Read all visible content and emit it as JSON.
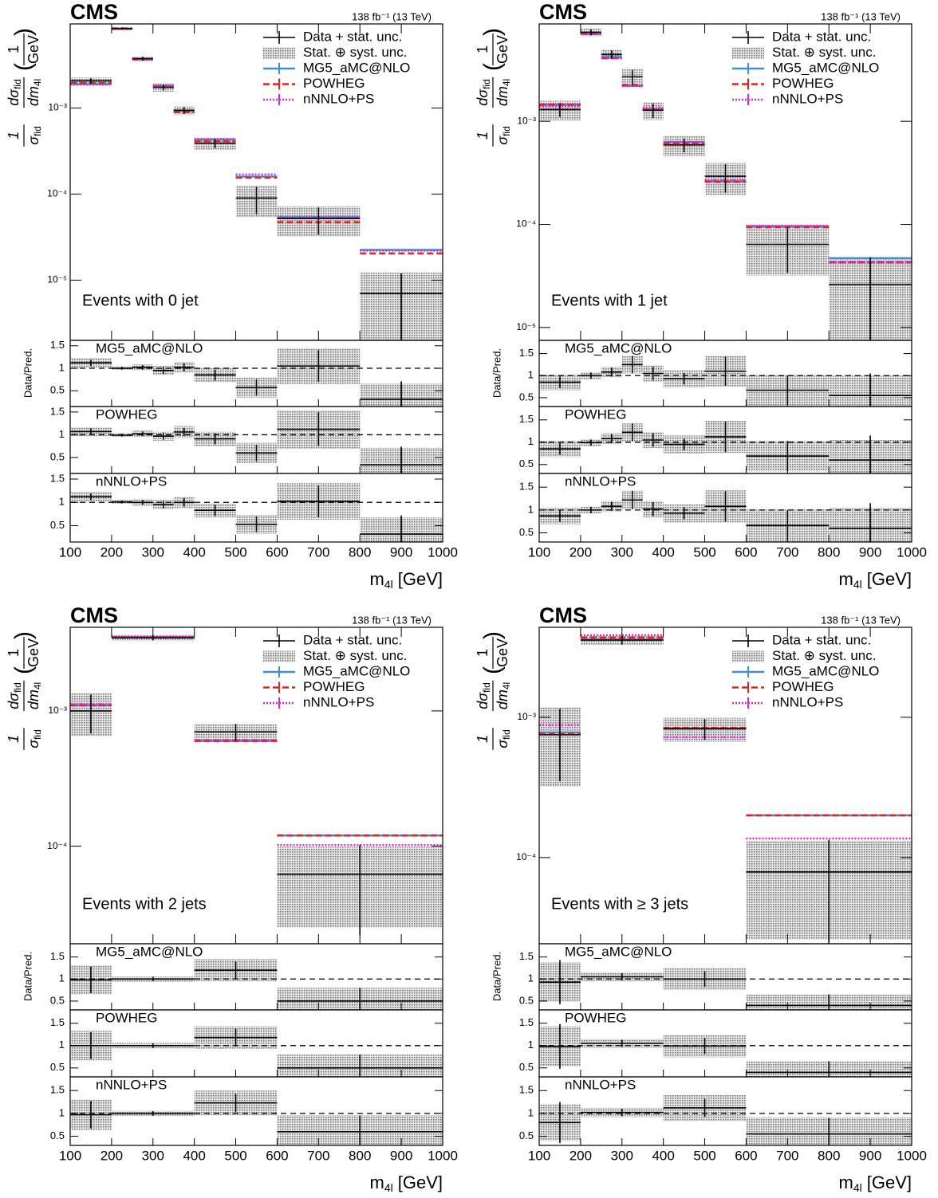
{
  "chart_data": [
    {
      "type": "histogram",
      "experiment": "CMS",
      "lumi": "138 fb⁻¹ (13 TeV)",
      "annotation": "Events with 0 jet",
      "ylabel": {
        "prefix_num": "1",
        "prefix_den": "σ",
        "prefix_den_sub": "fid",
        "num": "dσ",
        "num_sub": "fid",
        "den": "dm",
        "den_sub": "4l",
        "unit_open": "(",
        "unit_num": "1",
        "unit_den": "GeV",
        "unit_close": ")"
      },
      "xlabel": {
        "text": "m",
        "sub": "4l",
        "unit": "[GeV]"
      },
      "ratio_ylabel": "Data/Pred.",
      "bins": [
        100,
        200,
        250,
        300,
        350,
        400,
        500,
        600,
        800,
        1000
      ],
      "xlim": [
        100,
        1000
      ],
      "xticks": [
        100,
        200,
        300,
        400,
        500,
        600,
        700,
        800,
        900,
        1000
      ],
      "log": true,
      "ylim": [
        2e-06,
        0.0095
      ],
      "yticks": [
        {
          "value": 0.001,
          "label": "10⁻³"
        },
        {
          "value": 0.0001,
          "label": "10⁻⁴"
        },
        {
          "value": 1e-05,
          "label": "10⁻⁵"
        }
      ],
      "legend": "upper right",
      "data": {
        "name": "Data + stat. unc.",
        "color": "#000000",
        "values": [
          0.00207,
          0.0084,
          0.00375,
          0.00174,
          0.00094,
          0.00039,
          9e-05,
          5.2e-05,
          7e-06
        ],
        "stat": [
          0.00015,
          0.00025,
          0.00019,
          0.00014,
          8.5e-05,
          4.7e-05,
          3.2e-05,
          1.8e-05,
          5e-06
        ]
      },
      "band": {
        "name": "Stat. ⊕ syst. unc.",
        "color": "#6e6e6e",
        "errors": [
          0.0002,
          0.00035,
          0.00025,
          0.00019,
          0.00011,
          6e-05,
          3.6e-05,
          2e-05,
          5.2e-06
        ]
      },
      "series": [
        {
          "name": "MG5_aMC@NLO",
          "color": "#3f8fd2",
          "style": "solid",
          "values": [
            0.0019,
            0.0083,
            0.0037,
            0.0018,
            0.00093,
            0.00043,
            0.00016,
            5.4e-05,
            2.25e-05
          ]
        },
        {
          "name": "POWHEG",
          "color": "#e8211c",
          "style": "dashed",
          "values": [
            0.00195,
            0.0084,
            0.0037,
            0.00176,
            0.0009,
            0.00041,
            0.000155,
            4.7e-05,
            2.05e-05
          ]
        },
        {
          "name": "nNNLO+PS",
          "color": "#e020e0",
          "style": "dotted",
          "values": [
            0.00187,
            0.0083,
            0.00375,
            0.00182,
            0.00094,
            0.00044,
            0.00017,
            5.3e-05,
            2.2e-05
          ]
        }
      ],
      "ratio_ylim": [
        0.15,
        1.62
      ],
      "ratio_yticks": [
        0.5,
        1,
        1.5
      ],
      "ratio_ref": 1,
      "ratios": [
        {
          "label": "MG5_aMC@NLO",
          "values": [
            1.12,
            1.0,
            1.02,
            0.95,
            1.02,
            0.85,
            0.57,
            1.05,
            0.31
          ],
          "stat": [
            0.07,
            0.03,
            0.05,
            0.08,
            0.09,
            0.12,
            0.18,
            0.35,
            0.4
          ],
          "total": [
            0.11,
            0.04,
            0.07,
            0.1,
            0.12,
            0.16,
            0.22,
            0.4,
            0.35
          ]
        },
        {
          "label": "POWHEG",
          "values": [
            1.07,
            0.99,
            1.02,
            0.97,
            1.06,
            0.91,
            0.6,
            1.12,
            0.34
          ],
          "stat": [
            0.07,
            0.03,
            0.05,
            0.08,
            0.09,
            0.12,
            0.18,
            0.37,
            0.4
          ],
          "total": [
            0.1,
            0.04,
            0.07,
            0.1,
            0.13,
            0.16,
            0.22,
            0.42,
            0.37
          ]
        },
        {
          "label": "nNNLO+PS",
          "values": [
            1.12,
            1.01,
            1.0,
            0.95,
            1.0,
            0.83,
            0.53,
            1.02,
            0.32
          ],
          "stat": [
            0.07,
            0.03,
            0.05,
            0.08,
            0.09,
            0.12,
            0.17,
            0.34,
            0.4
          ],
          "total": [
            0.11,
            0.04,
            0.07,
            0.1,
            0.12,
            0.15,
            0.2,
            0.39,
            0.36
          ]
        }
      ]
    },
    {
      "type": "histogram",
      "experiment": "CMS",
      "lumi": "138 fb⁻¹ (13 TeV)",
      "annotation": "Events with 1 jet",
      "ylabel": {
        "prefix_num": "1",
        "prefix_den": "σ",
        "prefix_den_sub": "fid",
        "num": "dσ",
        "num_sub": "fid",
        "den": "dm",
        "den_sub": "4l",
        "unit_open": "(",
        "unit_num": "1",
        "unit_den": "GeV",
        "unit_close": ")"
      },
      "xlabel": {
        "text": "m",
        "sub": "4l",
        "unit": "[GeV]"
      },
      "ratio_ylabel": "Data/Pred.",
      "bins": [
        100,
        200,
        250,
        300,
        350,
        400,
        500,
        600,
        800,
        1000
      ],
      "xlim": [
        100,
        1000
      ],
      "xticks": [
        100,
        200,
        300,
        400,
        500,
        600,
        700,
        800,
        900,
        1000
      ],
      "log": true,
      "ylim": [
        7.5e-06,
        0.0088
      ],
      "yticks": [
        {
          "value": 0.001,
          "label": "10⁻³"
        },
        {
          "value": 0.0001,
          "label": "10⁻⁴"
        },
        {
          "value": 1e-05,
          "label": "10⁻⁵"
        }
      ],
      "legend": "upper right",
      "data": {
        "name": "Data + stat. unc.",
        "color": "#000000",
        "values": [
          0.0013,
          0.0073,
          0.00445,
          0.0027,
          0.00128,
          0.00059,
          0.000293,
          6.4e-05,
          2.6e-05
        ],
        "stat": [
          0.0002,
          0.0005,
          0.0004,
          0.00045,
          0.0002,
          9e-05,
          9e-05,
          3e-05,
          2.2e-05
        ]
      },
      "band": {
        "name": "Stat. ⊕ syst. unc.",
        "color": "#6e6e6e",
        "errors": [
          0.00028,
          0.0006,
          0.0005,
          0.0005,
          0.00025,
          0.00013,
          0.0001,
          3.2e-05,
          2e-05
        ]
      },
      "series": [
        {
          "name": "MG5_aMC@NLO",
          "color": "#3f8fd2",
          "style": "solid",
          "values": [
            0.00145,
            0.007,
            0.0042,
            0.0022,
            0.0013,
            0.00063,
            0.00026,
            9.6e-05,
            4.7e-05
          ]
        },
        {
          "name": "POWHEG",
          "color": "#e8211c",
          "style": "dashed",
          "values": [
            0.00145,
            0.0071,
            0.0041,
            0.00225,
            0.0013,
            0.00061,
            0.00026,
            9.4e-05,
            4.3e-05
          ]
        },
        {
          "name": "nNNLO+PS",
          "color": "#e020e0",
          "style": "dotted",
          "values": [
            0.0014,
            0.007,
            0.0041,
            0.0022,
            0.00135,
            0.00063,
            0.00027,
            9.7e-05,
            4.3e-05
          ]
        }
      ],
      "ratio_ylim": [
        0.3,
        1.8
      ],
      "ratio_yticks": [
        0.5,
        1,
        1.5
      ],
      "ratio_ref": 1,
      "ratios": [
        {
          "label": "MG5_aMC@NLO",
          "values": [
            0.85,
            1.0,
            1.08,
            1.25,
            1.05,
            0.93,
            1.1,
            0.67,
            0.55
          ],
          "stat": [
            0.13,
            0.07,
            0.1,
            0.2,
            0.15,
            0.13,
            0.33,
            0.33,
            0.5
          ],
          "total": [
            0.18,
            0.08,
            0.12,
            0.2,
            0.18,
            0.2,
            0.35,
            0.35,
            0.45
          ]
        },
        {
          "label": "POWHEG",
          "values": [
            0.85,
            0.99,
            1.08,
            1.22,
            1.05,
            0.95,
            1.12,
            0.69,
            0.6
          ],
          "stat": [
            0.13,
            0.07,
            0.1,
            0.2,
            0.15,
            0.13,
            0.34,
            0.34,
            0.55
          ],
          "total": [
            0.18,
            0.08,
            0.12,
            0.2,
            0.18,
            0.2,
            0.36,
            0.34,
            0.45
          ]
        },
        {
          "label": "nNNLO+PS",
          "values": [
            0.87,
            1.0,
            1.08,
            1.22,
            1.02,
            0.93,
            1.08,
            0.66,
            0.6
          ],
          "stat": [
            0.13,
            0.07,
            0.1,
            0.2,
            0.15,
            0.13,
            0.33,
            0.33,
            0.55
          ],
          "total": [
            0.18,
            0.08,
            0.12,
            0.2,
            0.18,
            0.2,
            0.35,
            0.35,
            0.45
          ]
        }
      ]
    },
    {
      "type": "histogram",
      "experiment": "CMS",
      "lumi": "138 fb⁻¹ (13 TeV)",
      "annotation": "Events with 2 jets",
      "ylabel": {
        "prefix_num": "1",
        "prefix_den": "σ",
        "prefix_den_sub": "fid",
        "num": "dσ",
        "num_sub": "fid",
        "den": "dm",
        "den_sub": "4l",
        "unit_open": "(",
        "unit_num": "1",
        "unit_den": "GeV",
        "unit_close": ")"
      },
      "xlabel": {
        "text": "m",
        "sub": "4l",
        "unit": "[GeV]"
      },
      "ratio_ylabel": "Data/Pred.",
      "bins": [
        100,
        200,
        400,
        600,
        1000
      ],
      "xlim": [
        100,
        1000
      ],
      "xticks": [
        100,
        200,
        300,
        400,
        500,
        600,
        700,
        800,
        900,
        1000
      ],
      "log": true,
      "ylim": [
        1.9e-05,
        0.00415
      ],
      "yticks": [
        {
          "value": 0.001,
          "label": "10⁻³"
        },
        {
          "value": 0.0001,
          "label": "10⁻⁴"
        }
      ],
      "legend": "upper right",
      "data": {
        "name": "Data + stat. unc.",
        "color": "#000000",
        "values": [
          0.001,
          0.00347,
          0.0007,
          6.2e-05
        ],
        "stat": [
          0.00032,
          0.00015,
          0.0001,
          4e-05
        ]
      },
      "band": {
        "name": "Stat. ⊕ syst. unc.",
        "color": "#6e6e6e",
        "errors": [
          0.00035,
          0.00018,
          0.0001,
          3.7e-05
        ]
      },
      "series": [
        {
          "name": "MG5_aMC@NLO",
          "color": "#3f8fd2",
          "style": "solid",
          "values": [
            0.0011,
            0.0035,
            0.0006,
            0.00012
          ]
        },
        {
          "name": "POWHEG",
          "color": "#e8211c",
          "style": "dashed",
          "values": [
            0.0011,
            0.0035,
            0.0006,
            0.00012
          ]
        },
        {
          "name": "nNNLO+PS",
          "color": "#e020e0",
          "style": "dotted",
          "values": [
            0.00112,
            0.00355,
            0.00061,
            0.000102
          ]
        }
      ],
      "ratio_ylim": [
        0.3,
        1.8
      ],
      "ratio_yticks": [
        0.5,
        1,
        1.5
      ],
      "ratio_ref": 1,
      "ratios": [
        {
          "label": "MG5_aMC@NLO",
          "values": [
            0.98,
            1.0,
            1.2,
            0.5
          ],
          "stat": [
            0.3,
            0.05,
            0.2,
            0.3
          ],
          "total": [
            0.33,
            0.06,
            0.25,
            0.3
          ]
        },
        {
          "label": "POWHEG",
          "values": [
            1.0,
            1.0,
            1.18,
            0.5
          ],
          "stat": [
            0.3,
            0.05,
            0.2,
            0.3
          ],
          "total": [
            0.33,
            0.06,
            0.25,
            0.3
          ]
        },
        {
          "label": "nNNLO+PS",
          "values": [
            0.97,
            1.0,
            1.23,
            0.6
          ],
          "stat": [
            0.3,
            0.05,
            0.2,
            0.35
          ],
          "total": [
            0.33,
            0.06,
            0.27,
            0.36
          ]
        }
      ]
    },
    {
      "type": "histogram",
      "experiment": "CMS",
      "lumi": "138 fb⁻¹ (13 TeV)",
      "annotation": "Events with ≥ 3 jets",
      "ylabel": {
        "prefix_num": "1",
        "prefix_den": "σ",
        "prefix_den_sub": "fid",
        "num": "dσ",
        "num_sub": "fid",
        "den": "dm",
        "den_sub": "4l",
        "unit_open": "(",
        "unit_num": "1",
        "unit_den": "GeV",
        "unit_close": ")"
      },
      "xlabel": {
        "text": "m",
        "sub": "4l",
        "unit": "[GeV]"
      },
      "ratio_ylabel": "Data/Pred.",
      "bins": [
        100,
        200,
        400,
        600,
        1000
      ],
      "xlim": [
        100,
        1000
      ],
      "xticks": [
        100,
        200,
        300,
        400,
        500,
        600,
        700,
        800,
        900,
        1000
      ],
      "log": true,
      "ylim": [
        2.43e-05,
        0.00438
      ],
      "yticks": [
        {
          "value": 0.001,
          "label": "10⁻³"
        },
        {
          "value": 0.0001,
          "label": "10⁻⁴"
        }
      ],
      "legend": "upper right",
      "data": {
        "name": "Data + stat. unc.",
        "color": "#000000",
        "values": [
          0.00075,
          0.00355,
          0.00083,
          7.9e-05
        ],
        "stat": [
          0.0004,
          0.00025,
          0.00014,
          5.5e-05
        ]
      },
      "band": {
        "name": "Stat. ⊕ syst. unc.",
        "color": "#6e6e6e",
        "errors": [
          0.00043,
          0.00026,
          0.00016,
          5.3e-05
        ]
      },
      "series": [
        {
          "name": "MG5_aMC@NLO",
          "color": "#3f8fd2",
          "style": "solid",
          "values": [
            0.00078,
            0.0036,
            0.00083,
            0.0002
          ]
        },
        {
          "name": "POWHEG",
          "color": "#e8211c",
          "style": "dashed",
          "values": [
            0.00076,
            0.0037,
            0.00084,
            0.0002
          ]
        },
        {
          "name": "nNNLO+PS",
          "color": "#e020e0",
          "style": "dotted",
          "values": [
            0.00088,
            0.00385,
            0.00072,
            0.000137
          ]
        }
      ],
      "ratio_ylim": [
        0.3,
        1.8
      ],
      "ratio_yticks": [
        0.5,
        1,
        1.5
      ],
      "ratio_ref": 1,
      "ratios": [
        {
          "label": "MG5_aMC@NLO",
          "values": [
            0.93,
            1.05,
            1.0,
            0.4
          ],
          "stat": [
            0.5,
            0.08,
            0.18,
            0.25
          ],
          "total": [
            0.45,
            0.1,
            0.25,
            0.25
          ]
        },
        {
          "label": "POWHEG",
          "values": [
            0.98,
            1.05,
            0.99,
            0.4
          ],
          "stat": [
            0.5,
            0.08,
            0.18,
            0.25
          ],
          "total": [
            0.45,
            0.1,
            0.25,
            0.25
          ]
        },
        {
          "label": "nNNLO+PS",
          "values": [
            0.8,
            1.02,
            1.12,
            0.55
          ],
          "stat": [
            0.45,
            0.08,
            0.2,
            0.35
          ],
          "total": [
            0.4,
            0.1,
            0.28,
            0.36
          ]
        }
      ]
    }
  ]
}
